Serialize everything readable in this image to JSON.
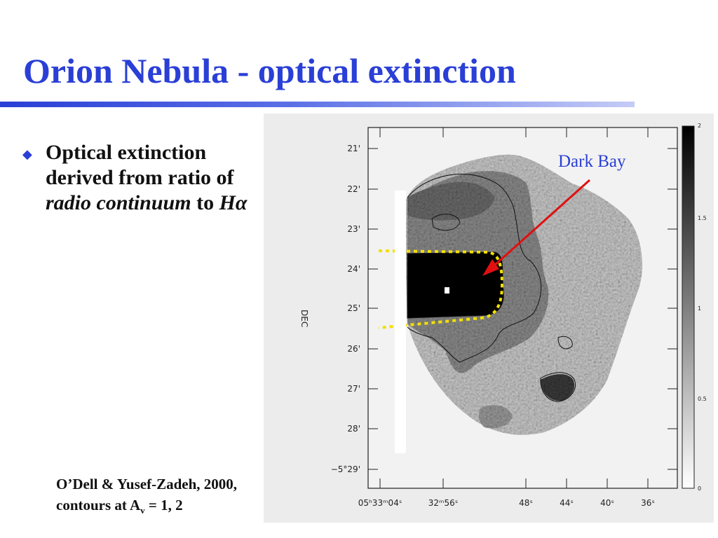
{
  "slide": {
    "title": "Orion Nebula - optical extinction",
    "bullet": {
      "line1": "Optical extinction",
      "line2": "derived from ratio of",
      "line3_italic": "radio continuum",
      "line3_plain": " to ",
      "line3_symbol": "Hα"
    },
    "caption": {
      "line1": "O’Dell & Yusef-Zadeh, 2000,",
      "line2_prefix": "contours at A",
      "line2_sub": "v",
      "line2_suffix": " = 1, 2"
    }
  },
  "figure": {
    "annotation": "Dark Bay",
    "y_axis_label": "DEC",
    "y_ticks": [
      "21'",
      "22'",
      "23'",
      "24'",
      "25'",
      "26'",
      "27'",
      "28'",
      "−5°29'"
    ],
    "x_ticks": [
      "05ʰ33ᵐ04ˢ",
      "32ᵐ56ˢ",
      "48ˢ",
      "44ˢ",
      "40ˢ",
      "36ˢ"
    ],
    "colorbar_ticks": [
      "2",
      "1.5",
      "1",
      "0.5",
      "0"
    ],
    "colors": {
      "title_blue": "#2a3fd6",
      "annotation_arrow": "#e01010",
      "outline_yellow": "#f2e000"
    }
  }
}
